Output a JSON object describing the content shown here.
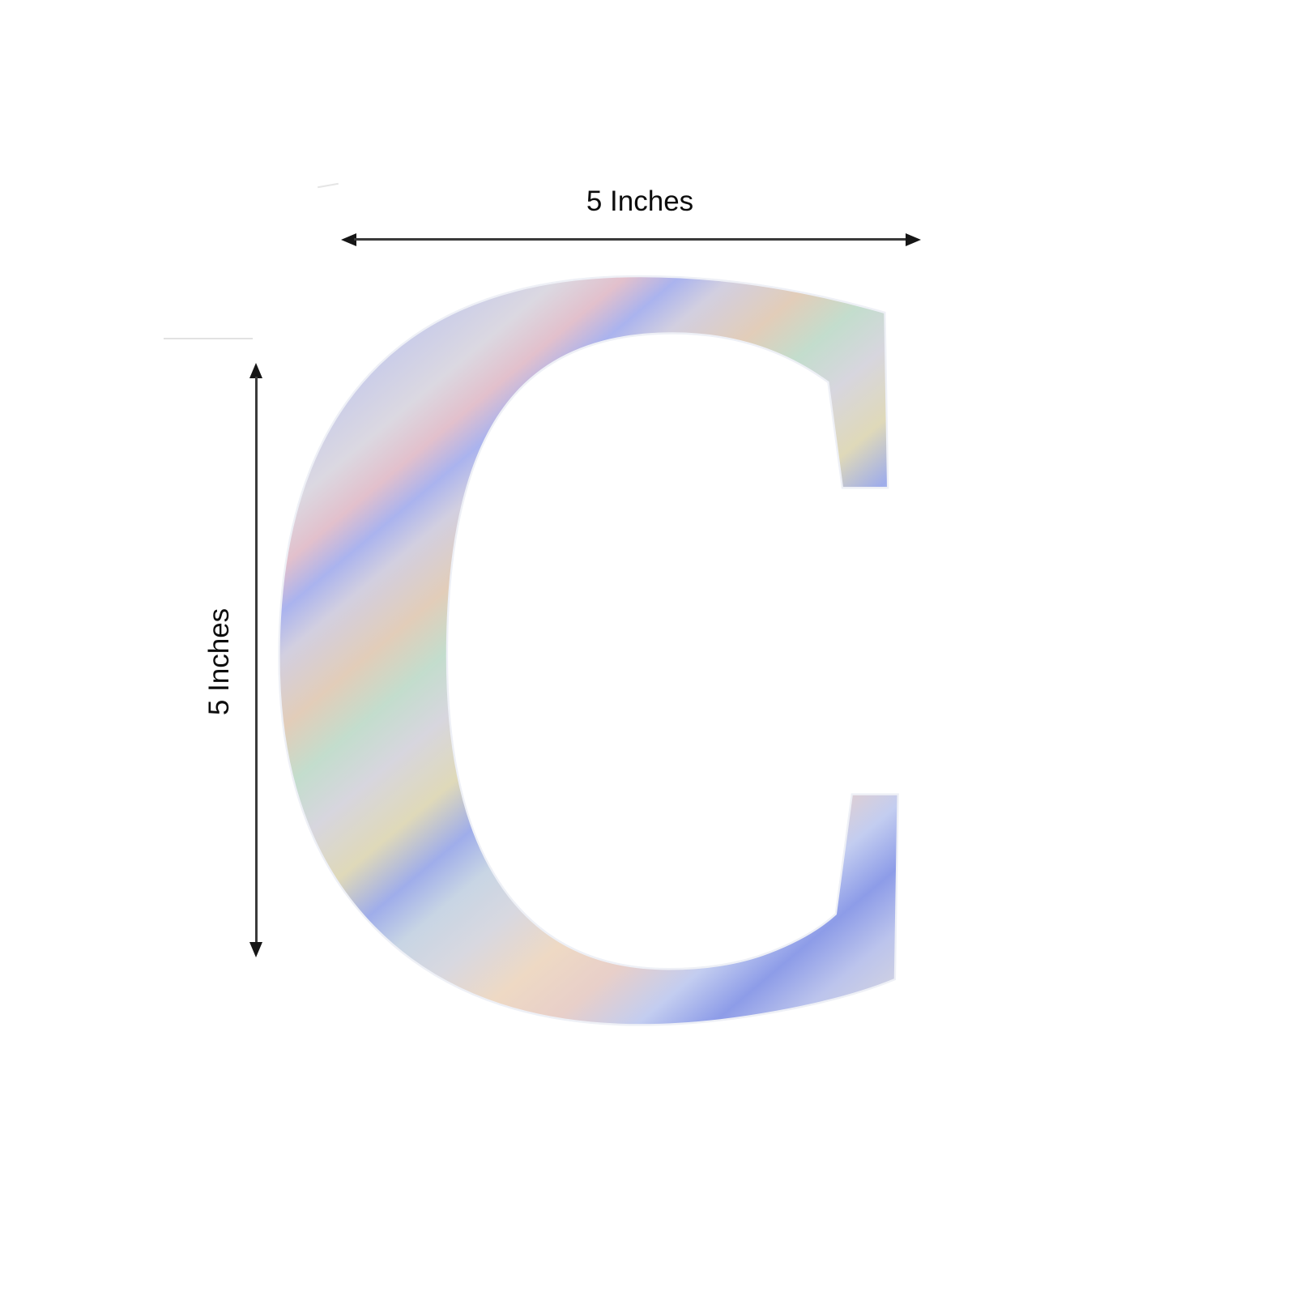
{
  "product": {
    "letter": "C"
  },
  "dimensions": {
    "width_label": "5 Inches",
    "height_label": "5 Inches"
  },
  "colors": {
    "background": "#ffffff",
    "dimension_line": "#3a3a3a",
    "arrowhead": "#161616",
    "label_text": "#0d0d0d",
    "holographic_palette": [
      "#dad8e3",
      "#a38ee2",
      "#d9b8cd",
      "#95a1ec",
      "#e2c0cc",
      "#e2cdb9",
      "#c3ddcd",
      "#9fadea",
      "#eed9c4",
      "#8d9ce8",
      "#d6d5df",
      "#e6d3c8",
      "#cfccdd"
    ]
  }
}
